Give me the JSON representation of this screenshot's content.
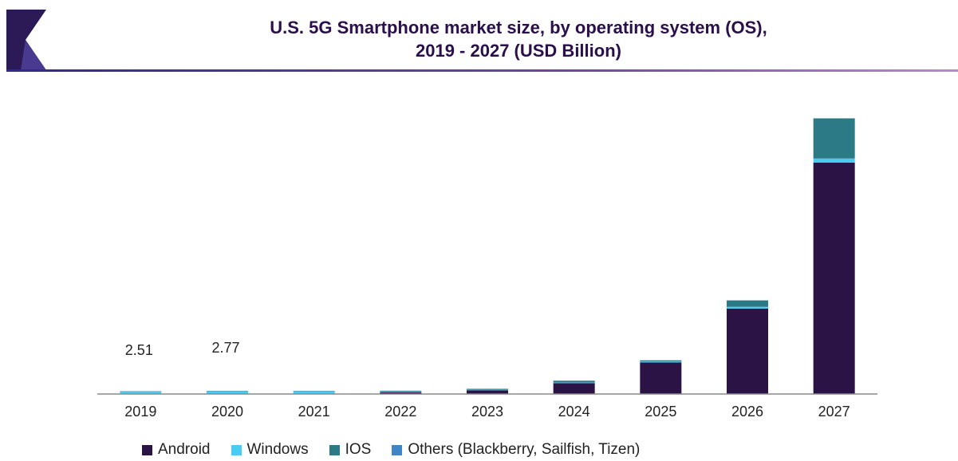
{
  "header": {
    "title_line1": "U.S. 5G Smartphone market size, by operating system (OS),",
    "title_line2": "2019 - 2027 (USD Billion)"
  },
  "colors": {
    "Android": "#2c1346",
    "Windows": "#49ccf2",
    "IOS": "#2c7a86",
    "Others": "#3f86c6",
    "axis": "#8a8a8a",
    "logo_dark": "#2b1a55",
    "logo_mid": "#4a3a8f"
  },
  "chart_data": {
    "type": "bar",
    "stacked": true,
    "title": "U.S. 5G Smartphone market size, by operating system (OS), 2019 - 2027 (USD Billion)",
    "categories": [
      "2019",
      "2020",
      "2021",
      "2022",
      "2023",
      "2024",
      "2025",
      "2026",
      "2027"
    ],
    "series": [
      {
        "name": "Android",
        "values": [
          0.0,
          0.1,
          0.4,
          1.5,
          3.3,
          9.5,
          27.5,
          74.5,
          202.0
        ]
      },
      {
        "name": "Windows",
        "values": [
          2.2,
          2.3,
          2.0,
          0.6,
          0.4,
          0.6,
          1.0,
          1.6,
          3.5
        ]
      },
      {
        "name": "IOS",
        "values": [
          0.2,
          0.3,
          0.3,
          0.7,
          0.8,
          1.5,
          0.9,
          5.6,
          35.0
        ]
      },
      {
        "name": "Others (Blackberry, Sailfish, Tizen)",
        "values": [
          0.11,
          0.07,
          0.05,
          0.05,
          0.05,
          0.05,
          0.05,
          0.05,
          0.05
        ]
      }
    ],
    "data_labels": [
      {
        "category": "2019",
        "text": "2.51"
      },
      {
        "category": "2020",
        "text": "2.77"
      }
    ],
    "ylim": [
      0,
      245
    ],
    "grid": false,
    "legend_position": "bottom"
  }
}
